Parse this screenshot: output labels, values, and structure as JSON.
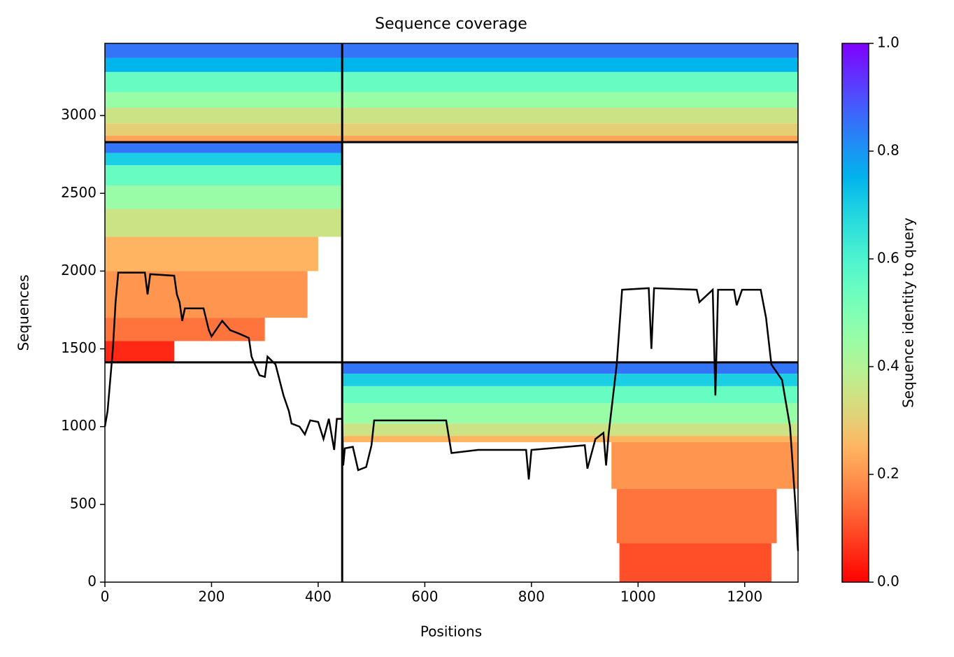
{
  "chart_data": {
    "type": "coverage",
    "title": "Sequence coverage",
    "xlabel": "Positions",
    "ylabel": "Sequences",
    "xlim": [
      0,
      1300
    ],
    "ylim": [
      0,
      3464
    ],
    "xticks": [
      0,
      200,
      400,
      600,
      800,
      1000,
      1200
    ],
    "yticks": [
      0,
      500,
      1000,
      1500,
      2000,
      2500,
      3000
    ],
    "regions": [
      {
        "x": [
          0,
          1300
        ],
        "y": [
          3370,
          3464
        ],
        "identity": 0.85
      },
      {
        "x": [
          0,
          1300
        ],
        "y": [
          3280,
          3370
        ],
        "identity": 0.75
      },
      {
        "x": [
          0,
          1300
        ],
        "y": [
          3150,
          3280
        ],
        "identity": 0.55
      },
      {
        "x": [
          0,
          1300
        ],
        "y": [
          3050,
          3150
        ],
        "identity": 0.45
      },
      {
        "x": [
          0,
          1300
        ],
        "y": [
          2950,
          3050
        ],
        "identity": 0.35
      },
      {
        "x": [
          0,
          1300
        ],
        "y": [
          2870,
          2950
        ],
        "identity": 0.3
      },
      {
        "x": [
          0,
          1300
        ],
        "y": [
          2829,
          2870
        ],
        "identity": 0.22
      },
      {
        "x": [
          0,
          445
        ],
        "y": [
          2760,
          2829
        ],
        "identity": 0.85
      },
      {
        "x": [
          0,
          445
        ],
        "y": [
          2680,
          2760
        ],
        "identity": 0.7
      },
      {
        "x": [
          0,
          445
        ],
        "y": [
          2550,
          2680
        ],
        "identity": 0.55
      },
      {
        "x": [
          0,
          445
        ],
        "y": [
          2400,
          2550
        ],
        "identity": 0.45
      },
      {
        "x": [
          0,
          445
        ],
        "y": [
          2220,
          2400
        ],
        "identity": 0.35
      },
      {
        "x": [
          0,
          400
        ],
        "y": [
          2000,
          2220
        ],
        "identity": 0.25
      },
      {
        "x": [
          0,
          380
        ],
        "y": [
          1700,
          2000
        ],
        "identity": 0.2
      },
      {
        "x": [
          0,
          300
        ],
        "y": [
          1550,
          1700
        ],
        "identity": 0.15
      },
      {
        "x": [
          0,
          130
        ],
        "y": [
          1413,
          1550
        ],
        "identity": 0.05
      },
      {
        "x": [
          445,
          1300
        ],
        "y": [
          1340,
          1413
        ],
        "identity": 0.85
      },
      {
        "x": [
          445,
          1300
        ],
        "y": [
          1260,
          1340
        ],
        "identity": 0.7
      },
      {
        "x": [
          445,
          1300
        ],
        "y": [
          1150,
          1260
        ],
        "identity": 0.55
      },
      {
        "x": [
          445,
          1300
        ],
        "y": [
          1020,
          1150
        ],
        "identity": 0.45
      },
      {
        "x": [
          445,
          1300
        ],
        "y": [
          940,
          1020
        ],
        "identity": 0.35
      },
      {
        "x": [
          445,
          1300
        ],
        "y": [
          900,
          940
        ],
        "identity": 0.25
      },
      {
        "x": [
          950,
          1300
        ],
        "y": [
          600,
          900
        ],
        "identity": 0.2
      },
      {
        "x": [
          960,
          1260
        ],
        "y": [
          250,
          600
        ],
        "identity": 0.15
      },
      {
        "x": [
          965,
          1250
        ],
        "y": [
          0,
          250
        ],
        "identity": 0.1
      }
    ],
    "coverage": {
      "color": "#000000",
      "x": [
        0,
        5,
        15,
        20,
        25,
        75,
        80,
        85,
        130,
        135,
        140,
        145,
        150,
        185,
        195,
        200,
        220,
        235,
        250,
        270,
        275,
        290,
        300,
        305,
        320,
        335,
        345,
        350,
        365,
        375,
        385,
        400,
        410,
        420,
        430,
        435,
        445,
        447,
        450,
        465,
        475,
        490,
        500,
        505,
        640,
        650,
        700,
        790,
        795,
        800,
        900,
        905,
        920,
        935,
        940,
        945,
        960,
        970,
        1020,
        1025,
        1030,
        1110,
        1115,
        1140,
        1145,
        1150,
        1180,
        1185,
        1195,
        1230,
        1240,
        1250,
        1270,
        1285,
        1295,
        1300
      ],
      "values": [
        1000,
        1100,
        1500,
        1800,
        1990,
        1990,
        1850,
        1980,
        1970,
        1850,
        1800,
        1680,
        1760,
        1760,
        1620,
        1580,
        1680,
        1620,
        1600,
        1570,
        1450,
        1330,
        1320,
        1450,
        1400,
        1200,
        1100,
        1020,
        1000,
        950,
        1040,
        1030,
        920,
        1050,
        850,
        1050,
        1050,
        750,
        860,
        870,
        720,
        740,
        880,
        1040,
        1040,
        830,
        850,
        850,
        660,
        850,
        880,
        730,
        920,
        960,
        750,
        960,
        1400,
        1880,
        1890,
        1500,
        1890,
        1880,
        1800,
        1880,
        1200,
        1880,
        1880,
        1780,
        1880,
        1880,
        1700,
        1400,
        1300,
        1000,
        500,
        200
      ]
    },
    "boundaries": {
      "x": [
        445
      ],
      "y": [
        1413,
        2829
      ]
    },
    "colorbar": {
      "label": "Sequence identity to query",
      "colormap": "rainbow_r",
      "lim": [
        0,
        1
      ],
      "ticks": [
        {
          "value": 0,
          "label": "0.0"
        },
        {
          "value": 0.2,
          "label": "0.2"
        },
        {
          "value": 0.4,
          "label": "0.4"
        },
        {
          "value": 0.6,
          "label": "0.6"
        },
        {
          "value": 0.8,
          "label": "0.8"
        },
        {
          "value": 1,
          "label": "1.0"
        }
      ]
    }
  }
}
